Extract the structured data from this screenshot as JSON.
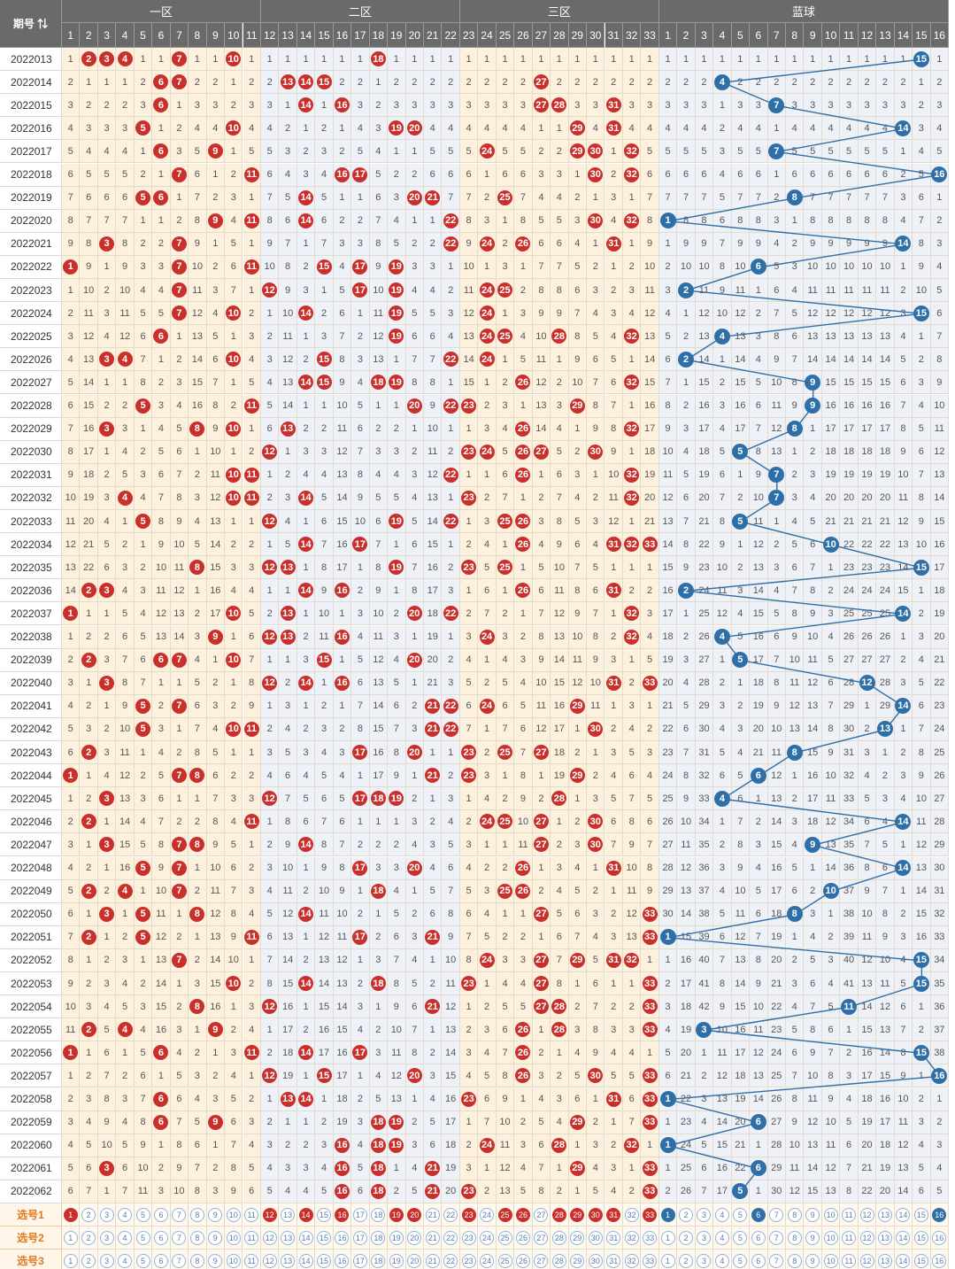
{
  "header": {
    "corner_label": "期号",
    "zones": [
      "一区",
      "二区",
      "三区",
      "蓝球"
    ]
  },
  "select_rows": [
    "选号1",
    "选号2",
    "选号3"
  ],
  "select_row1": {
    "red": [
      1,
      12,
      14,
      16,
      19,
      20,
      23,
      25,
      26,
      28,
      29,
      30,
      31,
      33
    ],
    "blue": [
      1,
      6,
      16
    ]
  },
  "colors": {
    "red_ball": "#c9302c",
    "blue_ball": "#2f6fa7",
    "zone_warm": "#fdf0dc",
    "zone_cool": "#eef1f7",
    "select_label": "#e07a1f"
  },
  "chart_data": {
    "type": "table",
    "red_numbers": [
      1,
      2,
      3,
      4,
      5,
      6,
      7,
      8,
      9,
      10,
      11,
      12,
      13,
      14,
      15,
      16,
      17,
      18,
      19,
      20,
      21,
      22,
      23,
      24,
      25,
      26,
      27,
      28,
      29,
      30,
      31,
      32,
      33
    ],
    "blue_numbers": [
      1,
      2,
      3,
      4,
      5,
      6,
      7,
      8,
      9,
      10,
      11,
      12,
      13,
      14,
      15,
      16
    ],
    "zones": [
      {
        "name": "一区",
        "range": [
          1,
          11
        ]
      },
      {
        "name": "二区",
        "range": [
          12,
          22
        ]
      },
      {
        "name": "三区",
        "range": [
          23,
          33
        ]
      },
      {
        "name": "蓝球",
        "range": [
          1,
          16
        ]
      }
    ],
    "draws": [
      {
        "period": "2022013",
        "red": [
          2,
          3,
          4,
          7,
          10,
          18
        ],
        "blue": 15
      },
      {
        "period": "2022014",
        "red": [
          6,
          7,
          13,
          14,
          15,
          27
        ],
        "blue": 4
      },
      {
        "period": "2022015",
        "red": [
          6,
          14,
          16,
          27,
          28,
          31
        ],
        "blue": 7
      },
      {
        "period": "2022016",
        "red": [
          5,
          10,
          19,
          20,
          29,
          31
        ],
        "blue": 14
      },
      {
        "period": "2022017",
        "red": [
          6,
          9,
          24,
          29,
          30,
          32
        ],
        "blue": 7
      },
      {
        "period": "2022018",
        "red": [
          7,
          11,
          16,
          17,
          30,
          32
        ],
        "blue": 16
      },
      {
        "period": "2022019",
        "red": [
          5,
          6,
          14,
          20,
          21,
          25
        ],
        "blue": 8
      },
      {
        "period": "2022020",
        "red": [
          9,
          11,
          14,
          22,
          30,
          32
        ],
        "blue": 1
      },
      {
        "period": "2022021",
        "red": [
          3,
          7,
          22,
          24,
          26,
          31
        ],
        "blue": 14
      },
      {
        "period": "2022022",
        "red": [
          1,
          7,
          11,
          15,
          17,
          19
        ],
        "blue": 6
      },
      {
        "period": "2022023",
        "red": [
          7,
          12,
          17,
          19,
          24,
          25
        ],
        "blue": 2
      },
      {
        "period": "2022024",
        "red": [
          7,
          10,
          14,
          19,
          24
        ],
        "blue": 15
      },
      {
        "period": "2022025",
        "red": [
          6,
          19,
          24,
          25,
          28,
          32
        ],
        "blue": 4
      },
      {
        "period": "2022026",
        "red": [
          3,
          4,
          10,
          15,
          22,
          24
        ],
        "blue": 2
      },
      {
        "period": "2022027",
        "red": [
          14,
          15,
          18,
          19,
          26,
          32
        ],
        "blue": 9
      },
      {
        "period": "2022028",
        "red": [
          5,
          11,
          20,
          22,
          23,
          29
        ],
        "blue": 9
      },
      {
        "period": "2022029",
        "red": [
          3,
          8,
          10,
          13,
          26,
          32
        ],
        "blue": 8
      },
      {
        "period": "2022030",
        "red": [
          12,
          23,
          24,
          26,
          27,
          30
        ],
        "blue": 5
      },
      {
        "period": "2022031",
        "red": [
          10,
          11,
          22,
          26,
          32
        ],
        "blue": 7
      },
      {
        "period": "2022032",
        "red": [
          4,
          10,
          11,
          14,
          23,
          32
        ],
        "blue": 7
      },
      {
        "period": "2022033",
        "red": [
          5,
          12,
          19,
          22,
          25,
          26
        ],
        "blue": 5
      },
      {
        "period": "2022034",
        "red": [
          14,
          17,
          26,
          31,
          32,
          33
        ],
        "blue": 10
      },
      {
        "period": "2022035",
        "red": [
          8,
          12,
          13,
          19,
          23,
          25
        ],
        "blue": 15
      },
      {
        "period": "2022036",
        "red": [
          2,
          3,
          14,
          16,
          26,
          31
        ],
        "blue": 2
      },
      {
        "period": "2022037",
        "red": [
          1,
          10,
          13,
          20,
          22,
          32
        ],
        "blue": 14
      },
      {
        "period": "2022038",
        "red": [
          9,
          12,
          13,
          16,
          24,
          32
        ],
        "blue": 4
      },
      {
        "period": "2022039",
        "red": [
          2,
          6,
          7,
          10,
          15,
          20
        ],
        "blue": 5
      },
      {
        "period": "2022040",
        "red": [
          3,
          12,
          14,
          16,
          31,
          33
        ],
        "blue": 12
      },
      {
        "period": "2022041",
        "red": [
          5,
          7,
          21,
          22,
          24,
          29
        ],
        "blue": 14
      },
      {
        "period": "2022042",
        "red": [
          5,
          10,
          11,
          21,
          22,
          30
        ],
        "blue": 13
      },
      {
        "period": "2022043",
        "red": [
          2,
          17,
          20,
          23,
          25,
          27
        ],
        "blue": 8
      },
      {
        "period": "2022044",
        "red": [
          1,
          7,
          8,
          21,
          23,
          29
        ],
        "blue": 6
      },
      {
        "period": "2022045",
        "red": [
          3,
          12,
          17,
          18,
          19,
          28
        ],
        "blue": 4
      },
      {
        "period": "2022046",
        "red": [
          2,
          11,
          24,
          25,
          27,
          30
        ],
        "blue": 14
      },
      {
        "period": "2022047",
        "red": [
          3,
          7,
          8,
          14,
          27,
          30
        ],
        "blue": 9
      },
      {
        "period": "2022048",
        "red": [
          5,
          7,
          17,
          20,
          26,
          31
        ],
        "blue": 14
      },
      {
        "period": "2022049",
        "red": [
          2,
          4,
          7,
          18,
          25,
          26
        ],
        "blue": 10
      },
      {
        "period": "2022050",
        "red": [
          3,
          5,
          8,
          14,
          27,
          33
        ],
        "blue": 8
      },
      {
        "period": "2022051",
        "red": [
          2,
          5,
          11,
          17,
          21,
          33
        ],
        "blue": 1
      },
      {
        "period": "2022052",
        "red": [
          7,
          24,
          27,
          29,
          31,
          32
        ],
        "blue": 15
      },
      {
        "period": "2022053",
        "red": [
          10,
          14,
          18,
          23,
          27,
          33
        ],
        "blue": 15
      },
      {
        "period": "2022054",
        "red": [
          8,
          12,
          21,
          27,
          28,
          33
        ],
        "blue": 11
      },
      {
        "period": "2022055",
        "red": [
          2,
          4,
          9,
          26,
          28,
          33
        ],
        "blue": 3
      },
      {
        "period": "2022056",
        "red": [
          1,
          6,
          11,
          14,
          17,
          26
        ],
        "blue": 15
      },
      {
        "period": "2022057",
        "red": [
          12,
          15,
          20,
          26,
          30,
          33
        ],
        "blue": 16
      },
      {
        "period": "2022058",
        "red": [
          6,
          13,
          14,
          23,
          31,
          33
        ],
        "blue": 1
      },
      {
        "period": "2022059",
        "red": [
          6,
          9,
          18,
          19,
          29,
          33
        ],
        "blue": 6
      },
      {
        "period": "2022060",
        "red": [
          16,
          18,
          19,
          24,
          28,
          32
        ],
        "blue": 1
      },
      {
        "period": "2022061",
        "red": [
          3,
          16,
          18,
          21,
          29,
          33
        ],
        "blue": 6
      },
      {
        "period": "2022062",
        "red": [
          16,
          18,
          21,
          23,
          33
        ],
        "blue": 5
      }
    ]
  }
}
